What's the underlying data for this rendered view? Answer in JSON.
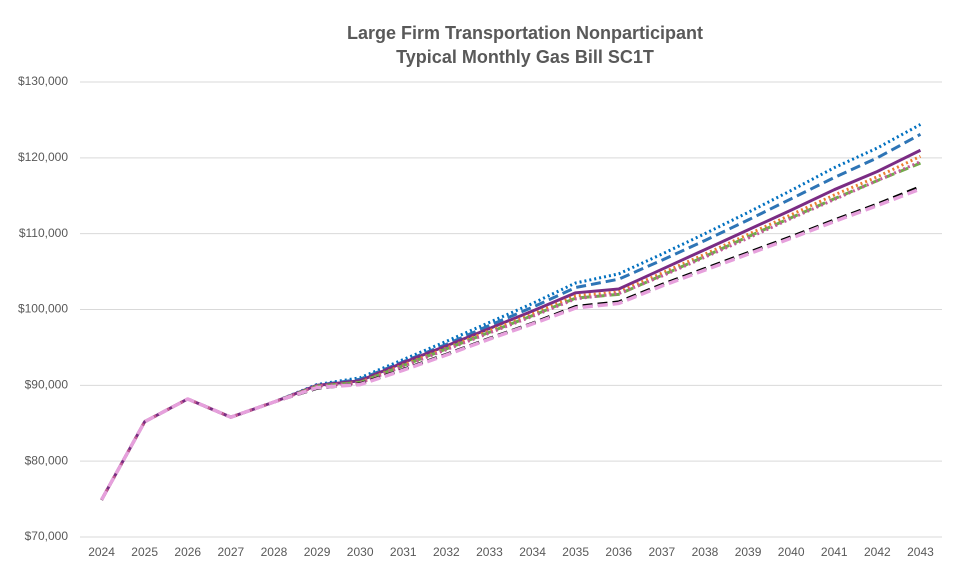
{
  "chart_data": {
    "type": "line",
    "title": [
      "Large Firm Transportation Nonparticipant",
      "Typical Monthly Gas Bill SC1T"
    ],
    "categories": [
      "2024",
      "2025",
      "2026",
      "2027",
      "2028",
      "2029",
      "2030",
      "2031",
      "2032",
      "2033",
      "2034",
      "2035",
      "2036",
      "2037",
      "2038",
      "2039",
      "2040",
      "2041",
      "2042",
      "2043"
    ],
    "ylim": [
      70000,
      130000
    ],
    "yticks": [
      {
        "value": 70000,
        "label": "$70,000"
      },
      {
        "value": 80000,
        "label": "$80,000"
      },
      {
        "value": 90000,
        "label": "$90,000"
      },
      {
        "value": 100000,
        "label": "$100,000"
      },
      {
        "value": 110000,
        "label": "$110,000"
      },
      {
        "value": 120000,
        "label": "$120,000"
      },
      {
        "value": 130000,
        "label": "$130,000"
      }
    ],
    "grid": true,
    "series": [
      {
        "color": "#0070c0",
        "style": "dotted",
        "values": [
          74900,
          85200,
          88200,
          85800,
          87800,
          90100,
          91000,
          93400,
          95800,
          98300,
          100800,
          103500,
          104700,
          107300,
          110000,
          112800,
          115700,
          118700,
          121300,
          124400
        ]
      },
      {
        "color": "#2e75b6",
        "style": "dashed",
        "values": [
          74900,
          85200,
          88200,
          85800,
          87800,
          90000,
          90800,
          93100,
          95400,
          97900,
          100300,
          102900,
          104000,
          106500,
          109100,
          111800,
          114600,
          117400,
          120000,
          123100
        ]
      },
      {
        "color": "#7b2c84",
        "style": "solid",
        "values": [
          74900,
          85200,
          88200,
          85800,
          87800,
          90000,
          90600,
          93000,
          95200,
          97500,
          99800,
          102200,
          102700,
          105300,
          107900,
          110500,
          113100,
          115800,
          118200,
          121000
        ]
      },
      {
        "color": "#ed7d31",
        "style": "dotted",
        "values": [
          74900,
          85200,
          88200,
          85800,
          87800,
          89900,
          90400,
          92700,
          94900,
          97200,
          99400,
          101800,
          102300,
          104800,
          107300,
          109900,
          112500,
          115100,
          117500,
          120200
        ]
      },
      {
        "color": "#70ad47",
        "style": "dashed",
        "values": [
          74900,
          85200,
          88200,
          85800,
          87800,
          89900,
          90400,
          92600,
          94800,
          97000,
          99200,
          101500,
          102000,
          104500,
          107000,
          109600,
          112100,
          114600,
          117000,
          119300
        ]
      },
      {
        "color": "#c55a9c",
        "style": "dotted",
        "values": [
          74900,
          85200,
          88200,
          85800,
          87800,
          89900,
          90300,
          92500,
          94700,
          96900,
          99100,
          101400,
          102100,
          104400,
          106900,
          109400,
          112000,
          114500,
          117000,
          119500
        ]
      },
      {
        "color": "#000000",
        "style": "dashed",
        "values": [
          74900,
          85200,
          88200,
          85800,
          87800,
          89600,
          90200,
          92100,
          94100,
          96200,
          98200,
          100400,
          101000,
          103300,
          105400,
          107500,
          109600,
          111800,
          113900,
          116200
        ]
      },
      {
        "color": "#e6a0dc",
        "style": "dashed",
        "values": [
          74900,
          85200,
          88200,
          85800,
          87800,
          89700,
          90100,
          92000,
          94000,
          96100,
          98100,
          100200,
          100800,
          103100,
          105200,
          107300,
          109400,
          111600,
          113700,
          115900
        ]
      }
    ]
  }
}
